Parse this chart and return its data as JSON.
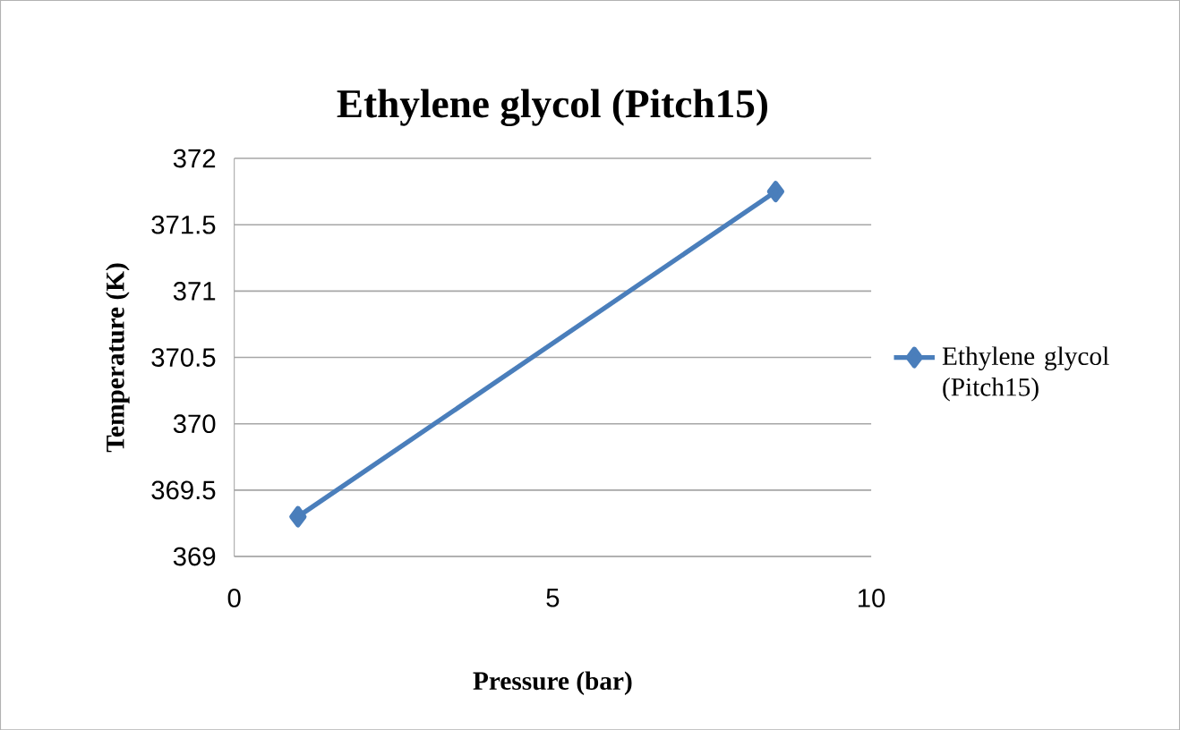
{
  "chart_data": {
    "type": "line",
    "title": "Ethylene glycol  (Pitch15)",
    "xlabel": "Pressure (bar)",
    "ylabel": "Temperature (K)",
    "x": [
      1,
      8.5
    ],
    "series": [
      {
        "name": "Ethylene glycol (Pitch15)",
        "color": "#4a7ebb",
        "values": [
          369.3,
          371.75
        ]
      }
    ],
    "xlim": [
      0,
      10
    ],
    "xticks": [
      0,
      5,
      10
    ],
    "ylim": [
      369,
      372
    ],
    "yticks": [
      369,
      369.5,
      370,
      370.5,
      371,
      371.5,
      372
    ],
    "grid": "y",
    "legend": "right",
    "marker": "diamond",
    "line_style": "solid"
  }
}
